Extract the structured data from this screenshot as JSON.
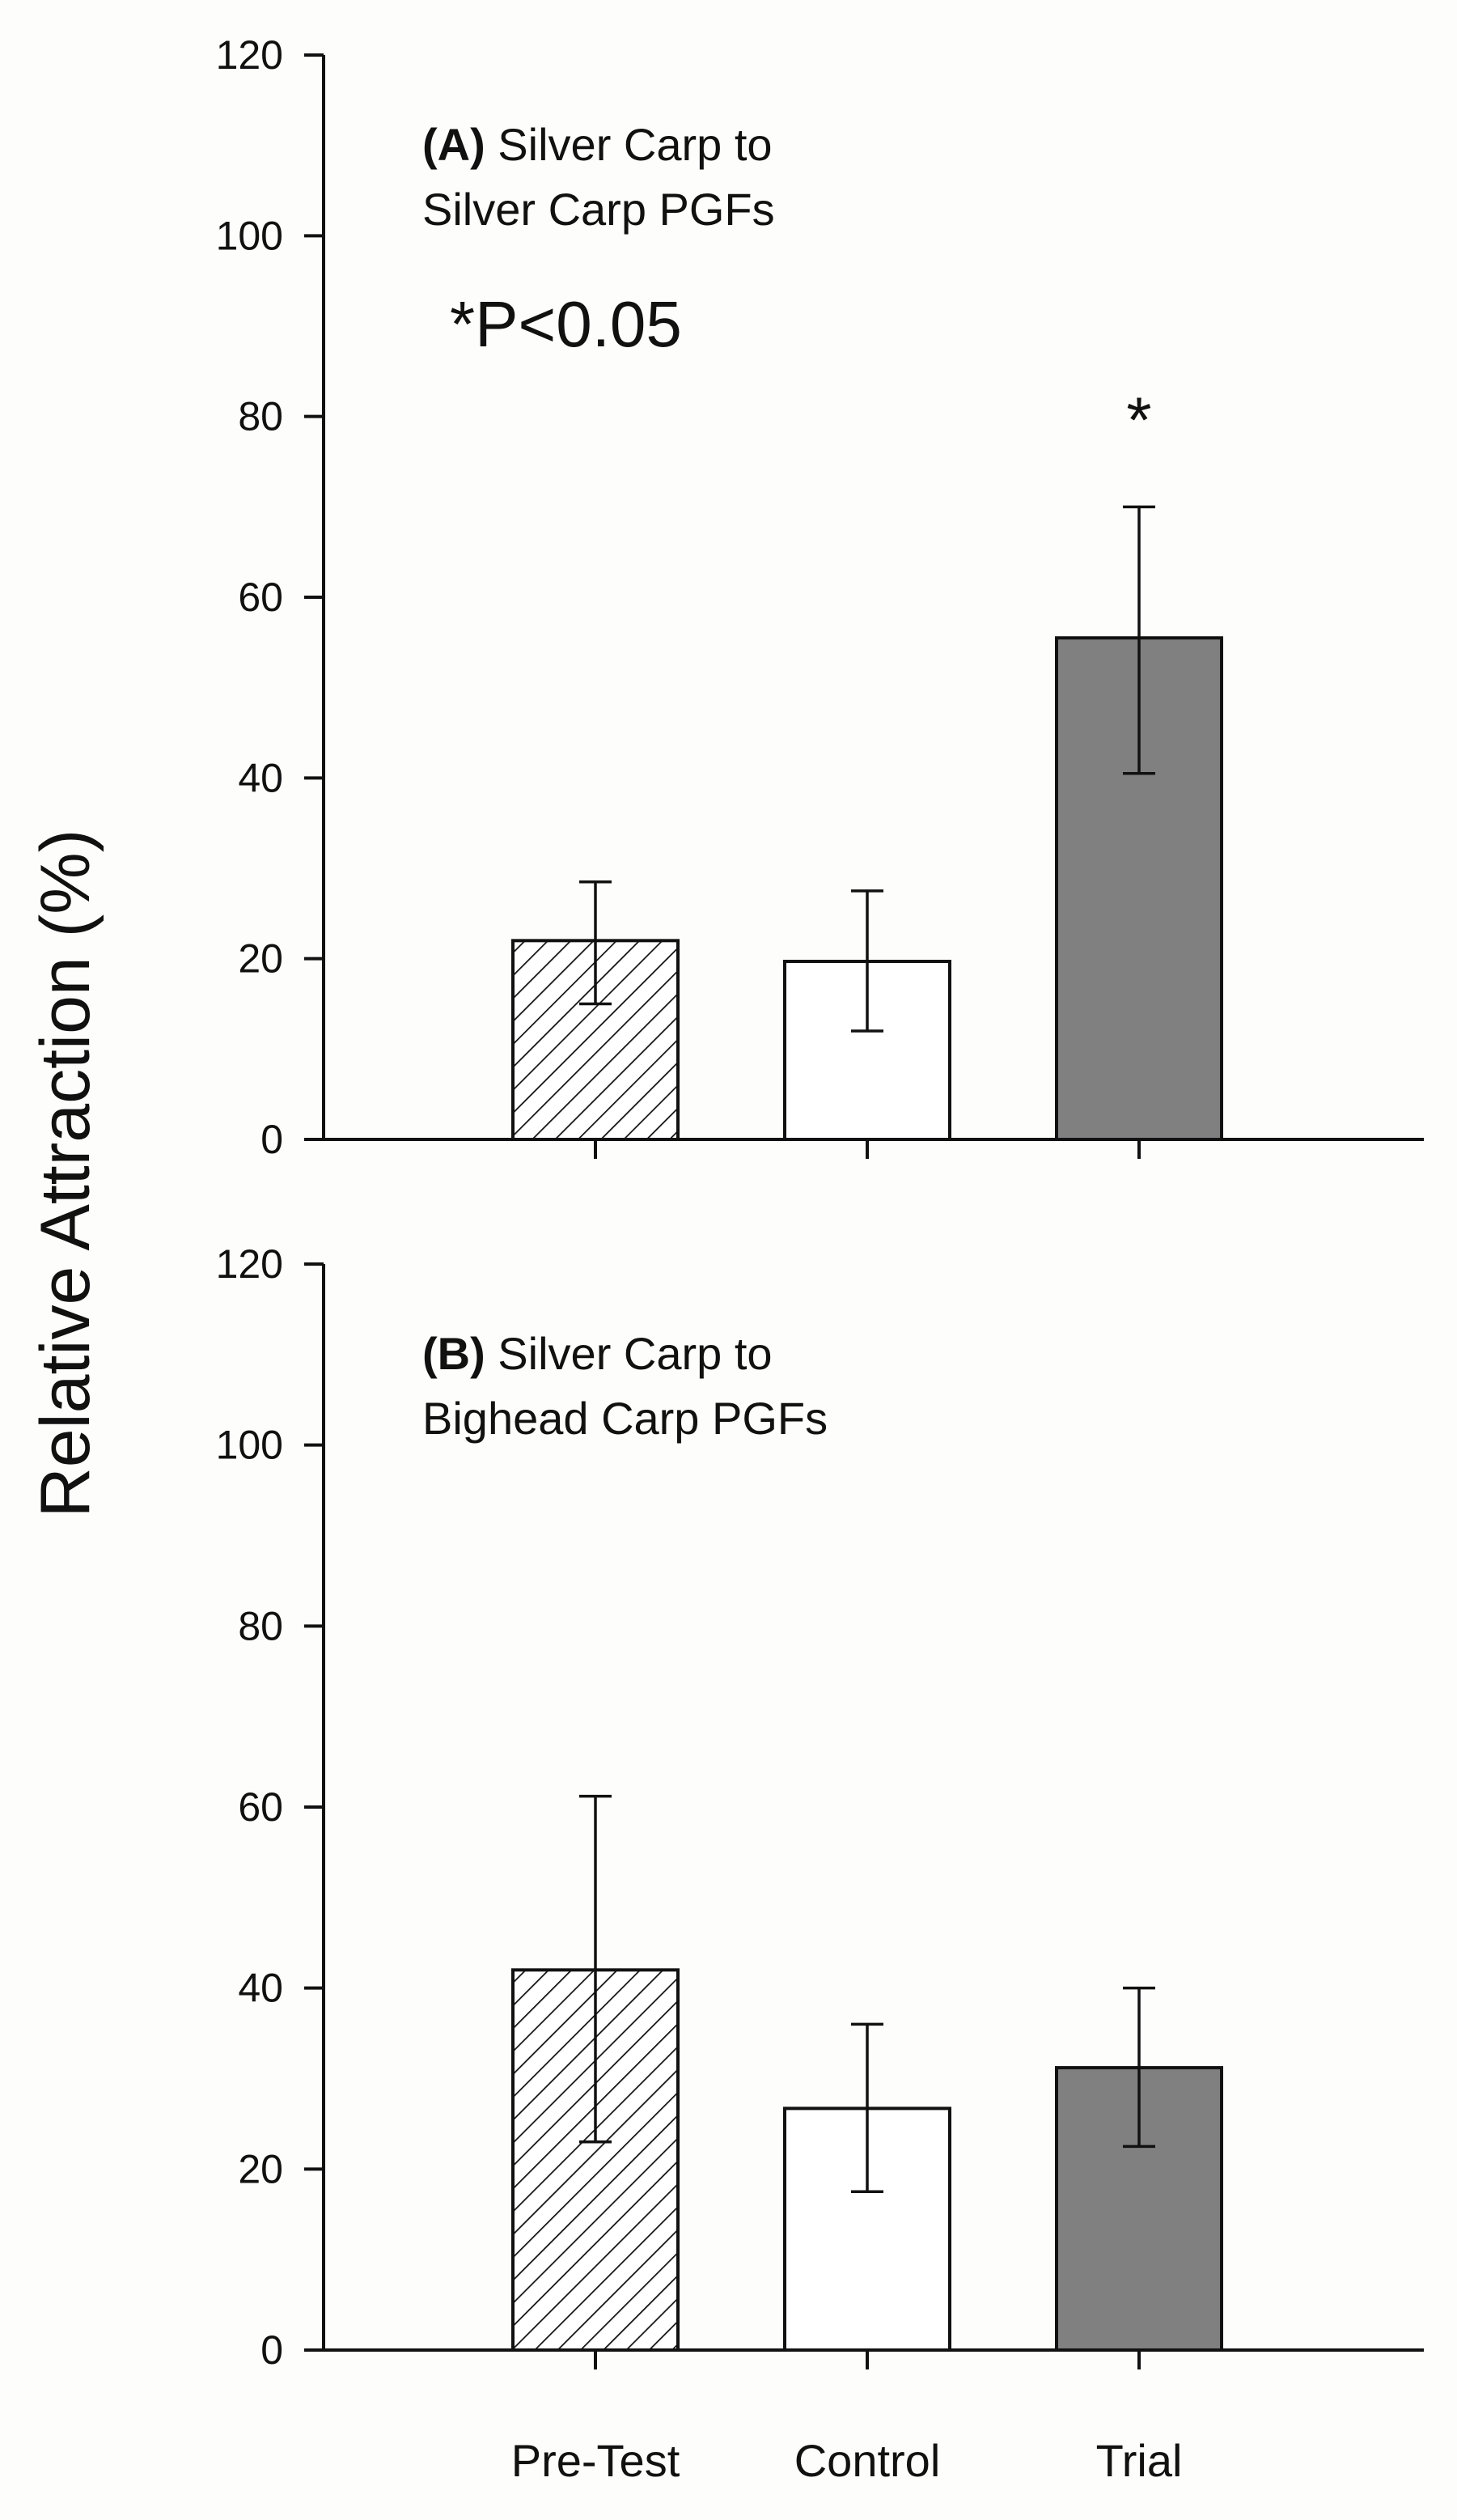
{
  "chart_data": {
    "type": "bar",
    "ylabel": "Relative Attraction (%)",
    "categories": [
      "Pre-Test",
      "Control",
      "Trial"
    ],
    "ylim": [
      0,
      120
    ],
    "yticks": [
      "0",
      "20",
      "40",
      "60",
      "80",
      "100",
      "120"
    ],
    "panels": [
      {
        "id": "A",
        "label_bold": "(A)",
        "label_line1": " Silver Carp to",
        "label_line2": "Silver Carp PGFs",
        "significance_note": "*P<0.05",
        "values": [
          22,
          19.7,
          55.5
        ],
        "error_upper": [
          28.5,
          27.5,
          70
        ],
        "error_lower": [
          15,
          12,
          40.5
        ],
        "markers": [
          "",
          "",
          "*"
        ],
        "fills": [
          "hatch",
          "white",
          "#808080"
        ]
      },
      {
        "id": "B",
        "label_bold": "(B)",
        "label_line1": " Silver Carp to",
        "label_line2": "Bighead Carp PGFs",
        "significance_note": "",
        "values": [
          42,
          26.7,
          31.2
        ],
        "error_upper": [
          61.2,
          36,
          40
        ],
        "error_lower": [
          23,
          17.5,
          22.5
        ],
        "markers": [
          "",
          "",
          ""
        ],
        "fills": [
          "hatch",
          "white",
          "#808080"
        ]
      }
    ]
  }
}
